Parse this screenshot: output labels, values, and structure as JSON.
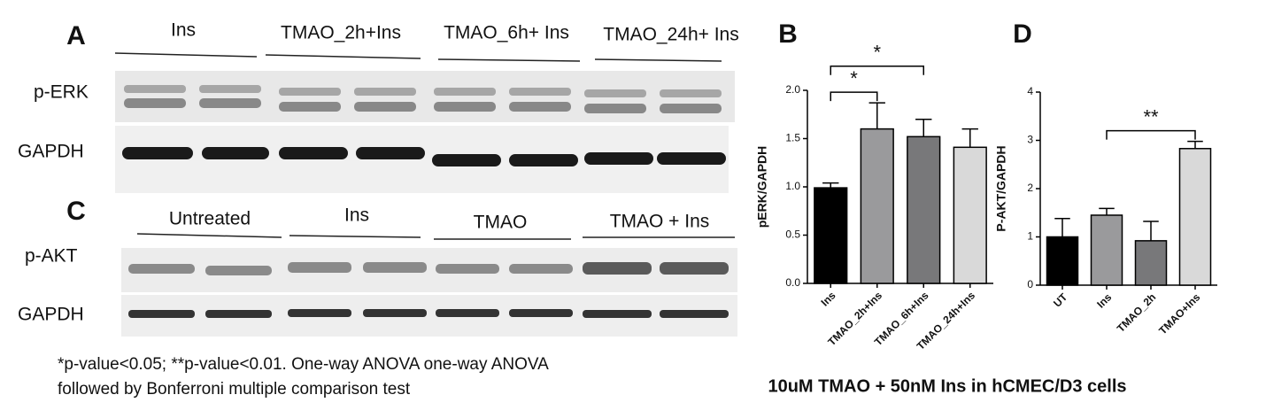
{
  "panel_a": {
    "letter": "A",
    "headers": [
      "Ins",
      "TMAO_2h+Ins",
      "TMAO_6h+ Ins",
      "TMAO_24h+ Ins"
    ],
    "rows": [
      "p-ERK",
      "GAPDH"
    ]
  },
  "panel_c": {
    "letter": "C",
    "headers": [
      "Untreated",
      "Ins",
      "TMAO",
      "TMAO + Ins"
    ],
    "rows": [
      "p-AKT",
      "GAPDH"
    ]
  },
  "footnote": [
    "*p-value<0.05; **p-value<0.01. One-way ANOVA one-way ANOVA",
    "followed by Bonferroni multiple comparison test"
  ],
  "caption": "10uM TMAO + 50nM Ins in hCMEC/D3 cells",
  "chart_data": [
    {
      "type": "bar",
      "letter": "B",
      "ylabel": "pERK/GAPDH",
      "categories": [
        "Ins",
        "TMAO_2h+Ins",
        "TMAO_6h+Ins",
        "TMAO_24h+Ins"
      ],
      "values": [
        0.99,
        1.6,
        1.52,
        1.41
      ],
      "errors": [
        0.05,
        0.27,
        0.18,
        0.19
      ],
      "colors": [
        "#000000",
        "#9a9a9c",
        "#78787a",
        "#d9d9d9"
      ],
      "ylim": [
        0,
        2
      ],
      "yticks": [
        {
          "value": 0,
          "label": "0.0"
        },
        0.5,
        {
          "value": 1,
          "label": "1.0"
        },
        1.5,
        {
          "value": 2,
          "label": "2.0"
        }
      ],
      "comparisons": [
        {
          "pair": [
            "Ins",
            "TMAO_2h+Ins"
          ],
          "label": "*"
        },
        {
          "pair": [
            "Ins",
            "TMAO_6h+Ins"
          ],
          "label": "*"
        }
      ]
    },
    {
      "type": "bar",
      "letter": "D",
      "ylabel": "P-AKT/GAPDH",
      "categories": [
        "UT",
        "Ins",
        "TMAO_2h",
        "TMAO+Ins"
      ],
      "values": [
        1.0,
        1.45,
        0.92,
        2.83
      ],
      "errors": [
        0.38,
        0.14,
        0.4,
        0.15
      ],
      "colors": [
        "#000000",
        "#9a9a9c",
        "#78787a",
        "#d9d9d9"
      ],
      "ylim": [
        0,
        4
      ],
      "yticks": [
        0,
        1,
        2,
        3,
        4
      ],
      "comparisons": [
        {
          "pair": [
            "Ins",
            "TMAO+Ins"
          ],
          "label": "**"
        }
      ]
    }
  ]
}
